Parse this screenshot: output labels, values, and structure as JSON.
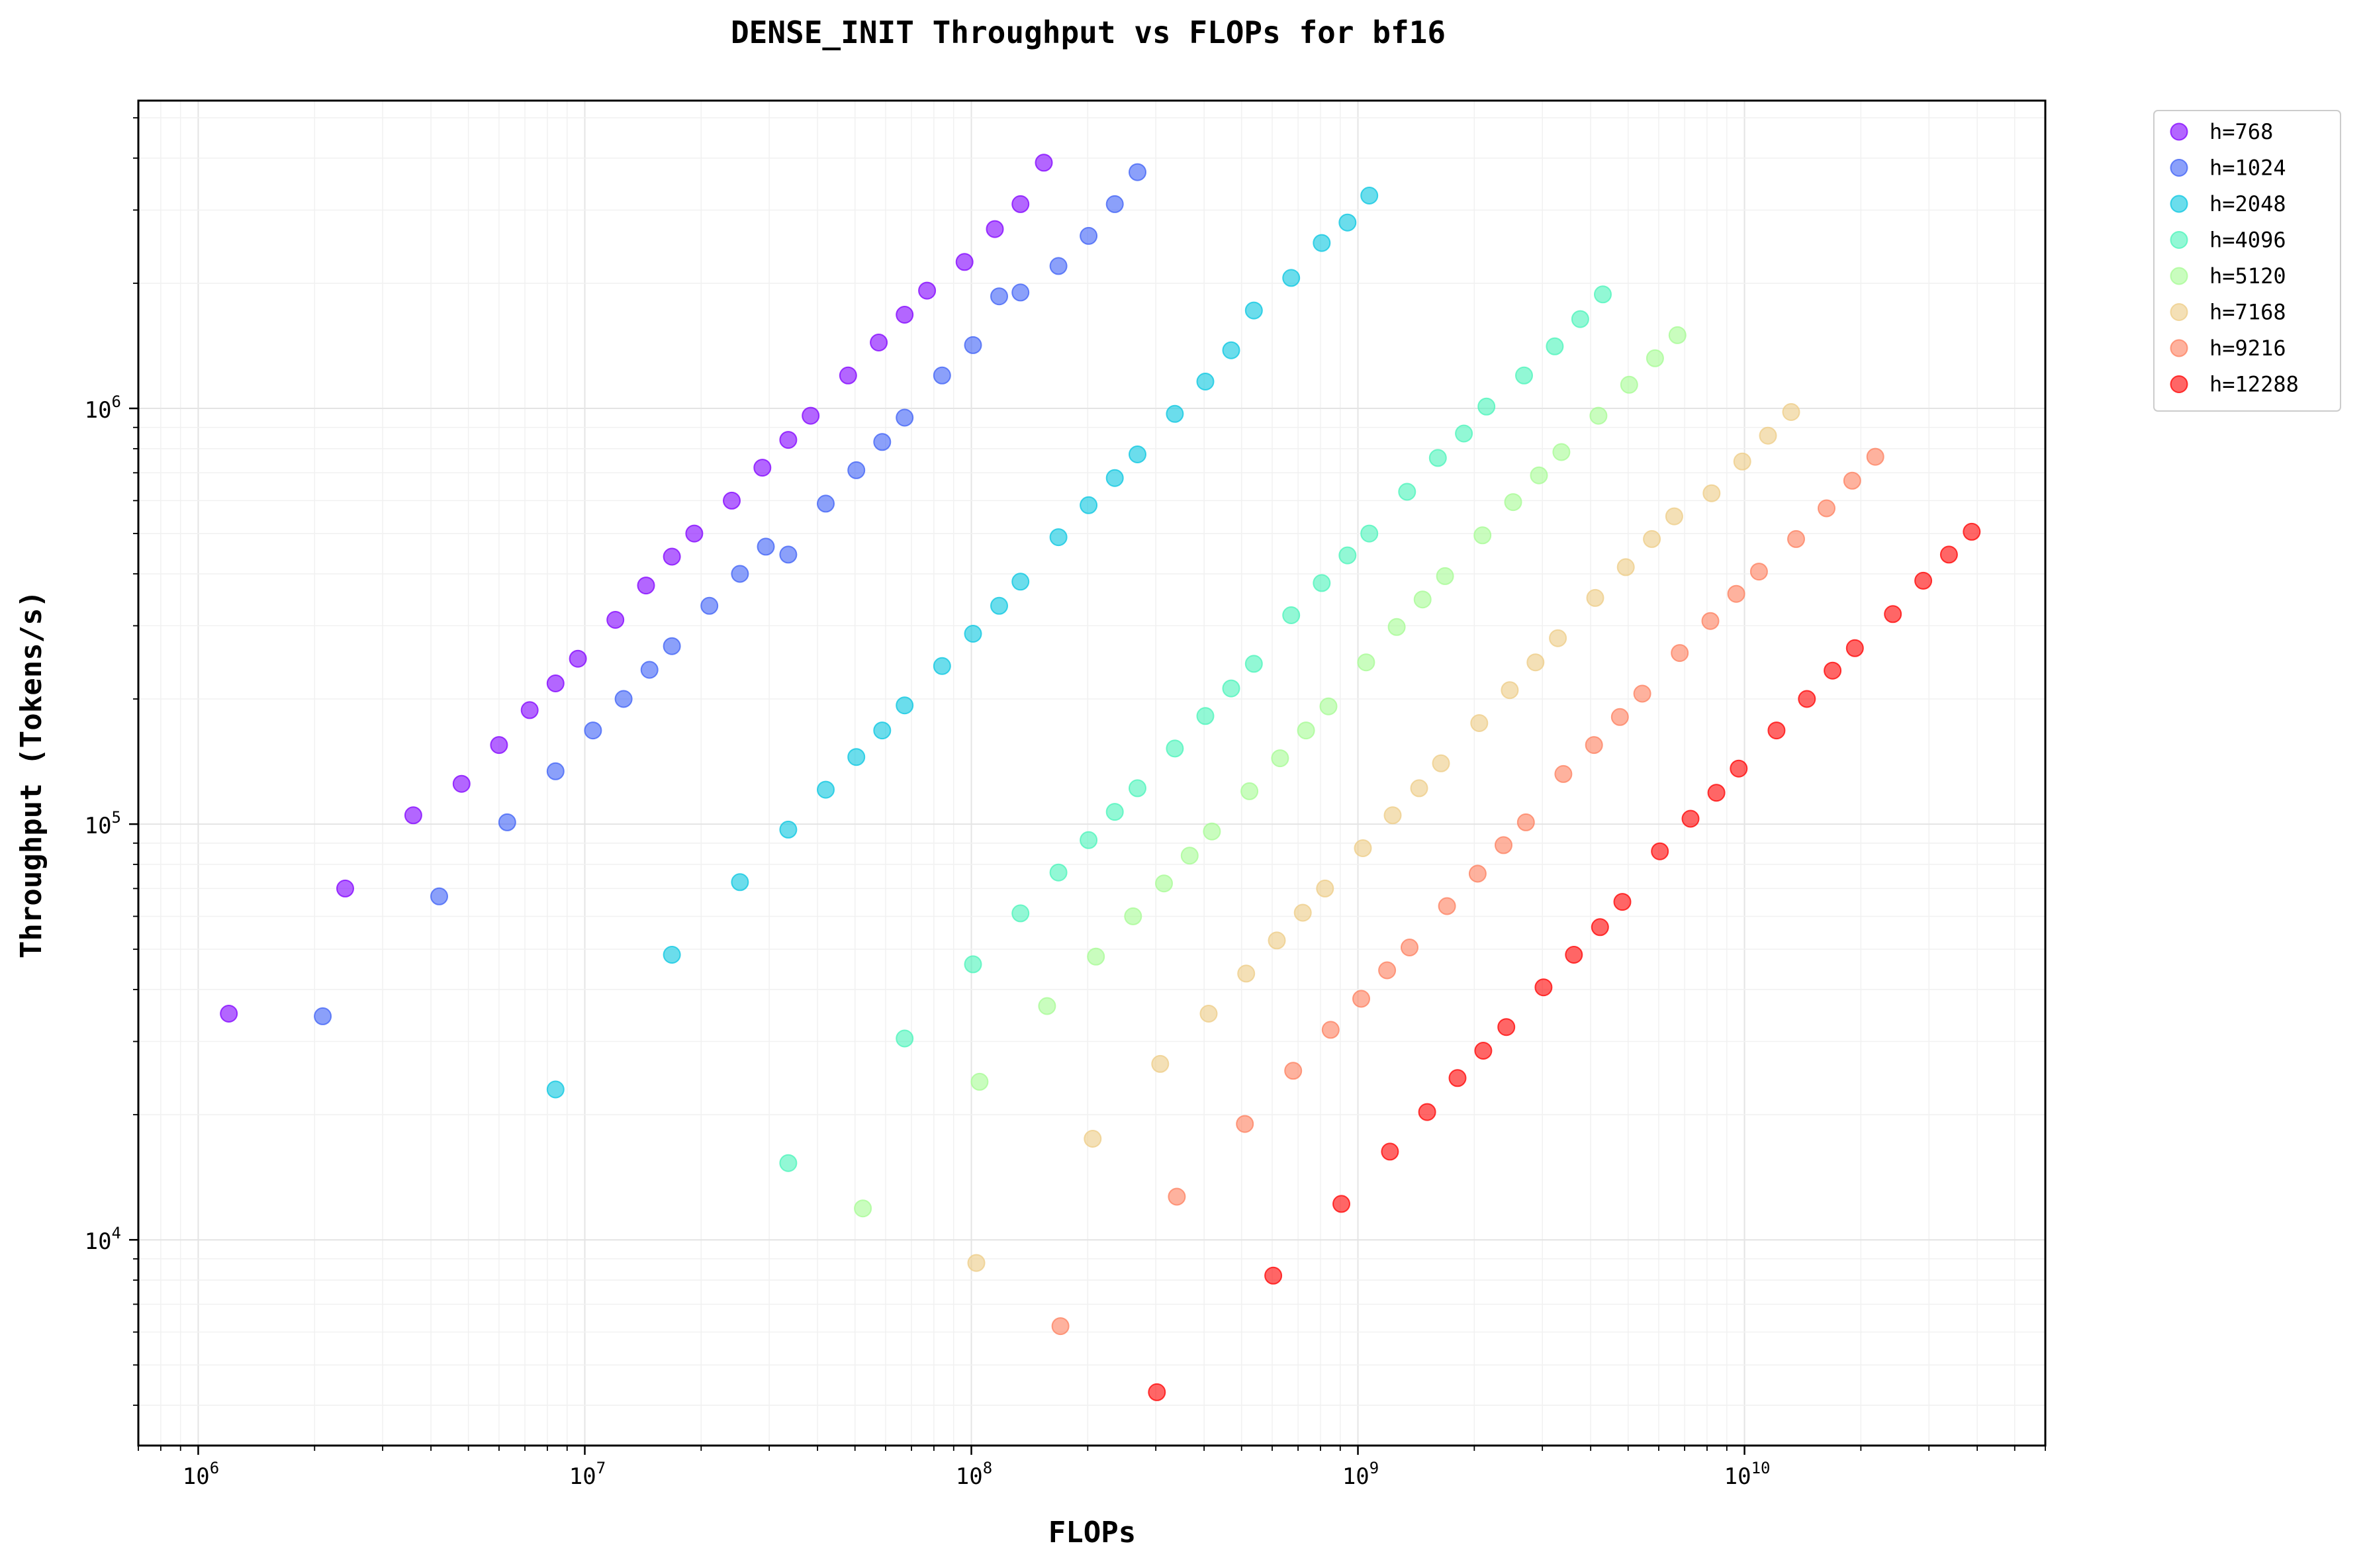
{
  "chart_data": {
    "type": "scatter",
    "title": "DENSE_INIT Throughput vs FLOPs for bf16",
    "xlabel": "FLOPs",
    "ylabel": "Throughput (Tokens/s)",
    "xscale": "log",
    "yscale": "log",
    "xlim": [
      700000.0,
      60000000000.0
    ],
    "ylim": [
      3200.0,
      5500000.0
    ],
    "x_major_ticks": [
      1000000.0,
      10000000.0,
      100000000.0,
      1000000000.0,
      10000000000.0
    ],
    "x_tick_labels": [
      [
        "10",
        "6"
      ],
      [
        "10",
        "7"
      ],
      [
        "10",
        "8"
      ],
      [
        "10",
        "9"
      ],
      [
        "10",
        "10"
      ]
    ],
    "y_major_ticks": [
      10000.0,
      100000.0,
      1000000.0
    ],
    "y_tick_labels": [
      [
        "10",
        "4"
      ],
      [
        "10",
        "5"
      ],
      [
        "10",
        "6"
      ]
    ],
    "grid": true,
    "legend_position": "outside-top-right",
    "series": [
      {
        "name": "h=768",
        "color": "#8000ff",
        "points": [
          [
            1200000.0,
            35000
          ],
          [
            2400000.0,
            70000
          ],
          [
            3600000.0,
            105000
          ],
          [
            4800000.0,
            125000
          ],
          [
            6000000.0,
            155000
          ],
          [
            7200000.0,
            188000
          ],
          [
            8400000.0,
            218000
          ],
          [
            9600000.0,
            250000
          ],
          [
            12000000.0,
            310000
          ],
          [
            14400000.0,
            375000
          ],
          [
            16800000.0,
            440000
          ],
          [
            19200000.0,
            500000
          ],
          [
            24000000.0,
            600000
          ],
          [
            28800000.0,
            720000
          ],
          [
            33600000.0,
            840000
          ],
          [
            38400000.0,
            960000
          ],
          [
            48000000.0,
            1200000
          ],
          [
            57600000.0,
            1440000
          ],
          [
            67200000.0,
            1680000
          ],
          [
            76800000.0,
            1920000
          ],
          [
            96000000.0,
            2250000
          ],
          [
            115000000.0,
            2700000
          ],
          [
            134000000.0,
            3100000
          ],
          [
            154000000.0,
            3900000
          ]
        ]
      },
      {
        "name": "h=1024",
        "color": "#3e60f6",
        "points": [
          [
            2100000.0,
            34500
          ],
          [
            4200000.0,
            67000
          ],
          [
            6300000.0,
            101000
          ],
          [
            8400000.0,
            134000
          ],
          [
            10500000.0,
            168000
          ],
          [
            12600000.0,
            200000
          ],
          [
            14700000.0,
            235000
          ],
          [
            16800000.0,
            268000
          ],
          [
            21000000.0,
            335000
          ],
          [
            25200000.0,
            400000
          ],
          [
            29400000.0,
            465000
          ],
          [
            33600000.0,
            445000
          ],
          [
            42000000.0,
            590000
          ],
          [
            50400000.0,
            710000
          ],
          [
            58800000.0,
            830000
          ],
          [
            67200000.0,
            950000
          ],
          [
            84000000.0,
            1200000
          ],
          [
            101000000.0,
            1420000
          ],
          [
            118000000.0,
            1860000
          ],
          [
            134000000.0,
            1900000
          ],
          [
            168000000.0,
            2200000
          ],
          [
            201000000.0,
            2600000
          ],
          [
            235000000.0,
            3100000
          ],
          [
            269000000.0,
            3700000
          ]
        ]
      },
      {
        "name": "h=2048",
        "color": "#08c6e0",
        "points": [
          [
            8400000.0,
            23000
          ],
          [
            16800000.0,
            48500
          ],
          [
            25200000.0,
            72500
          ],
          [
            33600000.0,
            97000
          ],
          [
            42000000.0,
            121000
          ],
          [
            50400000.0,
            145000
          ],
          [
            58800000.0,
            168000
          ],
          [
            67200000.0,
            193000
          ],
          [
            84000000.0,
            240000
          ],
          [
            101000000.0,
            287000
          ],
          [
            118000000.0,
            335000
          ],
          [
            134000000.0,
            383000
          ],
          [
            168000000.0,
            490000
          ],
          [
            201000000.0,
            585000
          ],
          [
            235000000.0,
            680000
          ],
          [
            269000000.0,
            775000
          ],
          [
            336000000.0,
            970000
          ],
          [
            403000000.0,
            1160000
          ],
          [
            470000000.0,
            1380000
          ],
          [
            538000000.0,
            1720000
          ],
          [
            672000000.0,
            2060000
          ],
          [
            806000000.0,
            2500000
          ],
          [
            940000000.0,
            2800000
          ],
          [
            1070000000.0,
            3250000
          ]
        ]
      },
      {
        "name": "h=4096",
        "color": "#49f4b9",
        "points": [
          [
            33600000.0,
            15300
          ],
          [
            67200000.0,
            30500
          ],
          [
            101000000.0,
            46000
          ],
          [
            134000000.0,
            61000
          ],
          [
            168000000.0,
            76500
          ],
          [
            201000000.0,
            91500
          ],
          [
            235000000.0,
            107000
          ],
          [
            269000000.0,
            122000
          ],
          [
            336000000.0,
            152000
          ],
          [
            403000000.0,
            182000
          ],
          [
            470000000.0,
            212000
          ],
          [
            538000000.0,
            243000
          ],
          [
            672000000.0,
            318000
          ],
          [
            806000000.0,
            380000
          ],
          [
            940000000.0,
            443000
          ],
          [
            1070000000.0,
            500000
          ],
          [
            1340000000.0,
            630000
          ],
          [
            1610000000.0,
            760000
          ],
          [
            1880000000.0,
            870000
          ],
          [
            2150000000.0,
            1010000
          ],
          [
            2690000000.0,
            1200000
          ],
          [
            3230000000.0,
            1410000
          ],
          [
            3760000000.0,
            1640000
          ],
          [
            4300000000.0,
            1880000
          ]
        ]
      },
      {
        "name": "h=5120",
        "color": "#a5fb93",
        "points": [
          [
            52400000.0,
            11900
          ],
          [
            105000000.0,
            24000
          ],
          [
            157000000.0,
            36500
          ],
          [
            210000000.0,
            48000
          ],
          [
            262000000.0,
            60000
          ],
          [
            315000000.0,
            72000
          ],
          [
            367000000.0,
            84000
          ],
          [
            419000000.0,
            96000
          ],
          [
            524000000.0,
            120000
          ],
          [
            629000000.0,
            144000
          ],
          [
            734000000.0,
            168000
          ],
          [
            839000000.0,
            192000
          ],
          [
            1050000000.0,
            245000
          ],
          [
            1260000000.0,
            298000
          ],
          [
            1470000000.0,
            347000
          ],
          [
            1680000000.0,
            395000
          ],
          [
            2100000000.0,
            495000
          ],
          [
            2520000000.0,
            595000
          ],
          [
            2940000000.0,
            690000
          ],
          [
            3360000000.0,
            785000
          ],
          [
            4190000000.0,
            960000
          ],
          [
            5030000000.0,
            1140000
          ],
          [
            5870000000.0,
            1320000
          ],
          [
            6710000000.0,
            1500000
          ]
        ]
      },
      {
        "name": "h=7168",
        "color": "#edcc86",
        "points": [
          [
            103000000.0,
            8800
          ],
          [
            206000000.0,
            17500
          ],
          [
            308000000.0,
            26500
          ],
          [
            411000000.0,
            35000
          ],
          [
            514000000.0,
            43700
          ],
          [
            617000000.0,
            52500
          ],
          [
            720000000.0,
            61200
          ],
          [
            822000000.0,
            70000
          ],
          [
            1030000000.0,
            87500
          ],
          [
            1230000000.0,
            105000
          ],
          [
            1440000000.0,
            122000
          ],
          [
            1640000000.0,
            140000
          ],
          [
            2060000000.0,
            175000
          ],
          [
            2470000000.0,
            210000
          ],
          [
            2880000000.0,
            245000
          ],
          [
            3290000000.0,
            280000
          ],
          [
            4110000000.0,
            350000
          ],
          [
            4930000000.0,
            415000
          ],
          [
            5760000000.0,
            485000
          ],
          [
            6580000000.0,
            550000
          ],
          [
            8220000000.0,
            625000
          ],
          [
            9870000000.0,
            745000
          ],
          [
            11500000000.0,
            860000
          ],
          [
            13200000000.0,
            980000
          ]
        ]
      },
      {
        "name": "h=9216",
        "color": "#fe7f5e",
        "points": [
          [
            170000000.0,
            6200
          ],
          [
            340000000.0,
            12700
          ],
          [
            510000000.0,
            19000
          ],
          [
            680000000.0,
            25500
          ],
          [
            850000000.0,
            32000
          ],
          [
            1020000000.0,
            38000
          ],
          [
            1190000000.0,
            44500
          ],
          [
            1360000000.0,
            50500
          ],
          [
            1700000000.0,
            63500
          ],
          [
            2040000000.0,
            76000
          ],
          [
            2380000000.0,
            89000
          ],
          [
            2720000000.0,
            101000
          ],
          [
            3400000000.0,
            132000
          ],
          [
            4080000000.0,
            155000
          ],
          [
            4760000000.0,
            181000
          ],
          [
            5440000000.0,
            206000
          ],
          [
            6800000000.0,
            258000
          ],
          [
            8160000000.0,
            308000
          ],
          [
            9520000000.0,
            358000
          ],
          [
            10900000000.0,
            405000
          ],
          [
            13600000000.0,
            485000
          ],
          [
            16300000000.0,
            575000
          ],
          [
            19000000000.0,
            670000
          ],
          [
            21800000000.0,
            765000
          ]
        ]
      },
      {
        "name": "h=12288",
        "color": "#ff0000",
        "points": [
          [
            302000000.0,
            4300
          ],
          [
            604000000.0,
            8200
          ],
          [
            906000000.0,
            12200
          ],
          [
            1210000000.0,
            16300
          ],
          [
            1510000000.0,
            20300
          ],
          [
            1810000000.0,
            24500
          ],
          [
            2110000000.0,
            28500
          ],
          [
            2420000000.0,
            32500
          ],
          [
            3020000000.0,
            40500
          ],
          [
            3620000000.0,
            48500
          ],
          [
            4230000000.0,
            56500
          ],
          [
            4830000000.0,
            65000
          ],
          [
            6040000000.0,
            86000
          ],
          [
            7250000000.0,
            103000
          ],
          [
            8460000000.0,
            119000
          ],
          [
            9660000000.0,
            136000
          ],
          [
            12100000000.0,
            168000
          ],
          [
            14500000000.0,
            200000
          ],
          [
            16900000000.0,
            234000
          ],
          [
            19300000000.0,
            265000
          ],
          [
            24200000000.0,
            320000
          ],
          [
            29000000000.0,
            385000
          ],
          [
            33800000000.0,
            445000
          ],
          [
            38700000000.0,
            505000
          ]
        ]
      }
    ]
  }
}
